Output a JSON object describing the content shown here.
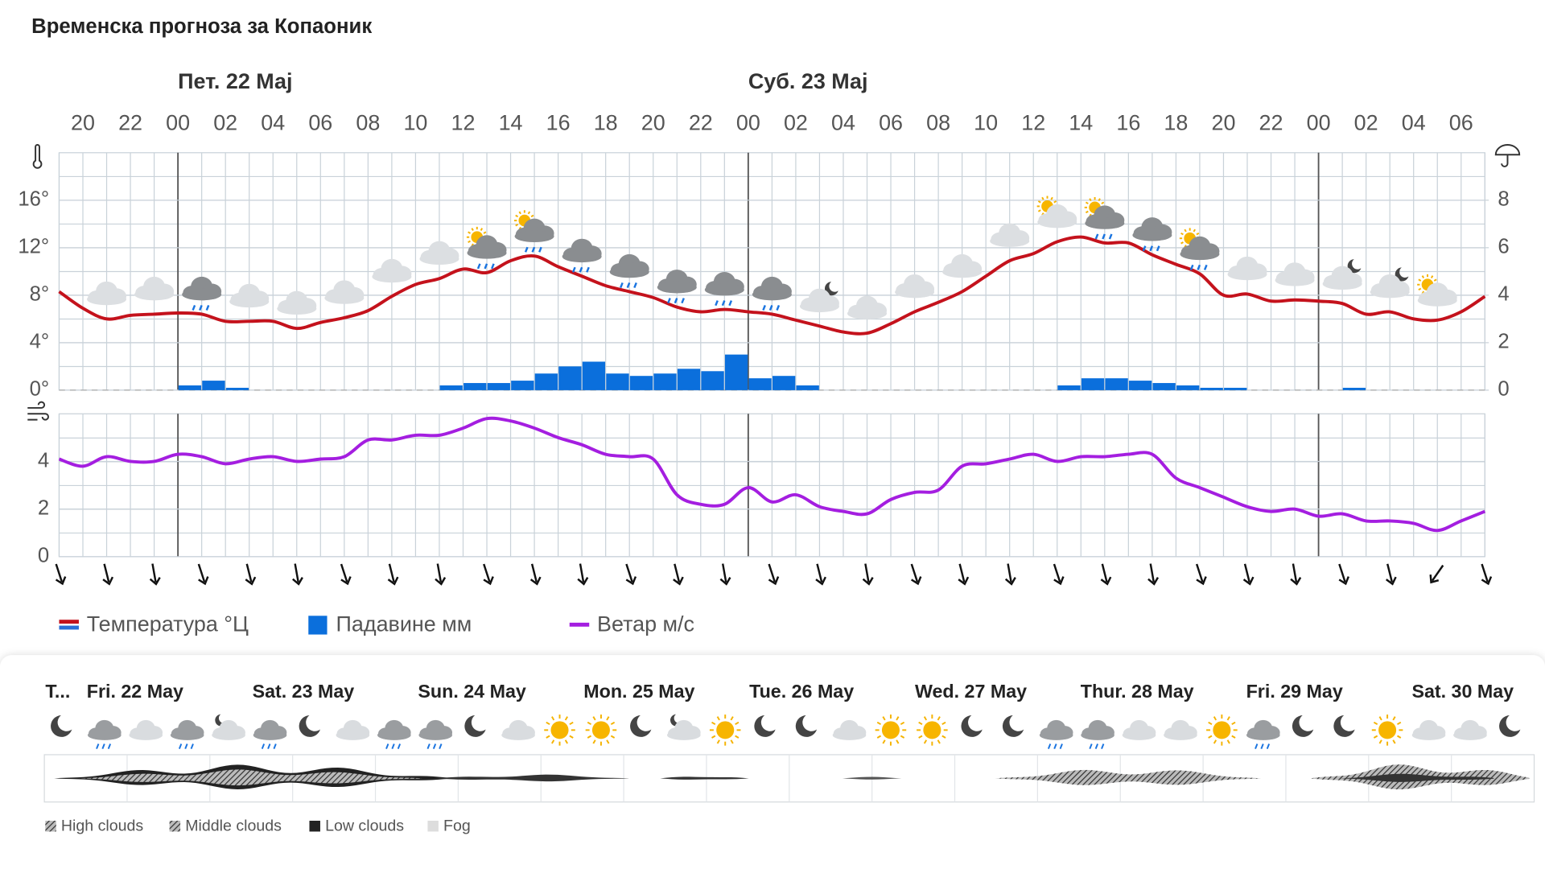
{
  "title": "Временска прогноза за Копаоник",
  "chart_data": {
    "type": "combo",
    "days": [
      "Пет. 22 Мај",
      "Суб. 23 Мај"
    ],
    "categories": [
      null,
      "20",
      null,
      "22",
      null,
      "00",
      null,
      "02",
      null,
      "04",
      null,
      "06",
      null,
      "08",
      null,
      "10",
      null,
      "12",
      null,
      "14",
      null,
      "16",
      null,
      "18",
      null,
      "20",
      null,
      "22",
      null,
      "00",
      null,
      "02",
      null,
      "04",
      null,
      "06",
      null,
      "08",
      null,
      "10",
      null,
      "12",
      null,
      "14",
      null,
      "16",
      null,
      "18",
      null,
      "20",
      null,
      "22",
      null,
      "00",
      null,
      "02",
      null,
      "04",
      null,
      "06",
      null
    ],
    "ylim": [
      0,
      20
    ],
    "yticks": [
      {
        "value": 0,
        "label": "0°"
      },
      {
        "value": 4,
        "label": "4°"
      },
      {
        "value": 8,
        "label": "8°"
      },
      {
        "value": 12,
        "label": "12°"
      },
      {
        "value": 16,
        "label": "16°"
      }
    ],
    "y2lim": [
      0,
      10
    ],
    "y2ticks": [
      0,
      2,
      4,
      6,
      8
    ],
    "y3lim": [
      0,
      6
    ],
    "y3ticks": [
      0,
      2,
      4
    ],
    "grid": true,
    "series": [
      {
        "name": "Температура °Ц",
        "type": "line",
        "color": "#c4121c",
        "values": [
          8.3,
          6.9,
          6.0,
          6.3,
          6.4,
          6.5,
          6.4,
          5.8,
          5.8,
          5.8,
          5.2,
          5.7,
          6.1,
          6.7,
          7.9,
          8.9,
          9.4,
          10.2,
          9.9,
          10.9,
          11.3,
          10.4,
          9.6,
          8.8,
          8.3,
          7.8,
          7.0,
          6.6,
          6.8,
          6.6,
          6.4,
          5.9,
          5.4,
          4.9,
          4.8,
          5.6,
          6.6,
          7.4,
          8.3,
          9.6,
          10.9,
          11.5,
          12.5,
          12.9,
          12.4,
          12.4,
          11.4,
          10.6,
          9.8,
          8.0,
          8.1,
          7.5,
          7.6,
          7.5,
          7.3,
          6.4,
          6.6,
          6.0,
          5.9,
          6.6,
          7.9
        ]
      },
      {
        "name": "Падавине мм",
        "type": "bar",
        "axis": "y2",
        "color": "#0b6fdc",
        "values": [
          null,
          0,
          0,
          0,
          0,
          0,
          0.2,
          0.4,
          0.1,
          0,
          0,
          0,
          0,
          0,
          0,
          0,
          0,
          0.2,
          0.3,
          0.3,
          0.4,
          0.7,
          1.0,
          1.2,
          0.7,
          0.6,
          0.7,
          0.9,
          0.8,
          1.5,
          0.5,
          0.6,
          0.2,
          0,
          0,
          0,
          0,
          0,
          0,
          0,
          0,
          0,
          0,
          0.2,
          0.5,
          0.5,
          0.4,
          0.3,
          0.2,
          0.1,
          0.1,
          0,
          0,
          0,
          0,
          0.1,
          0,
          0,
          0,
          0,
          0
        ]
      },
      {
        "name": "Ветар м/с",
        "type": "line",
        "axis": "y3",
        "color": "#a41ee0",
        "values": [
          4.1,
          3.8,
          4.2,
          4.0,
          4.0,
          4.3,
          4.2,
          3.9,
          4.1,
          4.2,
          4.0,
          4.1,
          4.2,
          4.9,
          4.9,
          5.1,
          5.1,
          5.4,
          5.8,
          5.7,
          5.4,
          5.0,
          4.7,
          4.3,
          4.2,
          4.1,
          2.6,
          2.2,
          2.2,
          2.9,
          2.3,
          2.6,
          2.1,
          1.9,
          1.8,
          2.4,
          2.7,
          2.8,
          3.8,
          3.9,
          4.1,
          4.3,
          4.0,
          4.2,
          4.2,
          4.3,
          4.3,
          3.3,
          2.9,
          2.5,
          2.1,
          1.9,
          2.0,
          1.7,
          1.8,
          1.5,
          1.5,
          1.4,
          1.1,
          1.5,
          1.9
        ]
      }
    ]
  },
  "outlook": {
    "days": [
      "T...",
      "Fri. 22 May",
      "Sat. 23 May",
      "Sun. 24 May",
      "Mon. 25 May",
      "Tue. 26 May",
      "Wed. 27 May",
      "Thur. 28 May",
      "Fri. 29 May",
      "Sat. 30 May"
    ],
    "legend": [
      "High clouds",
      "Middle clouds",
      "Low clouds",
      "Fog"
    ]
  }
}
